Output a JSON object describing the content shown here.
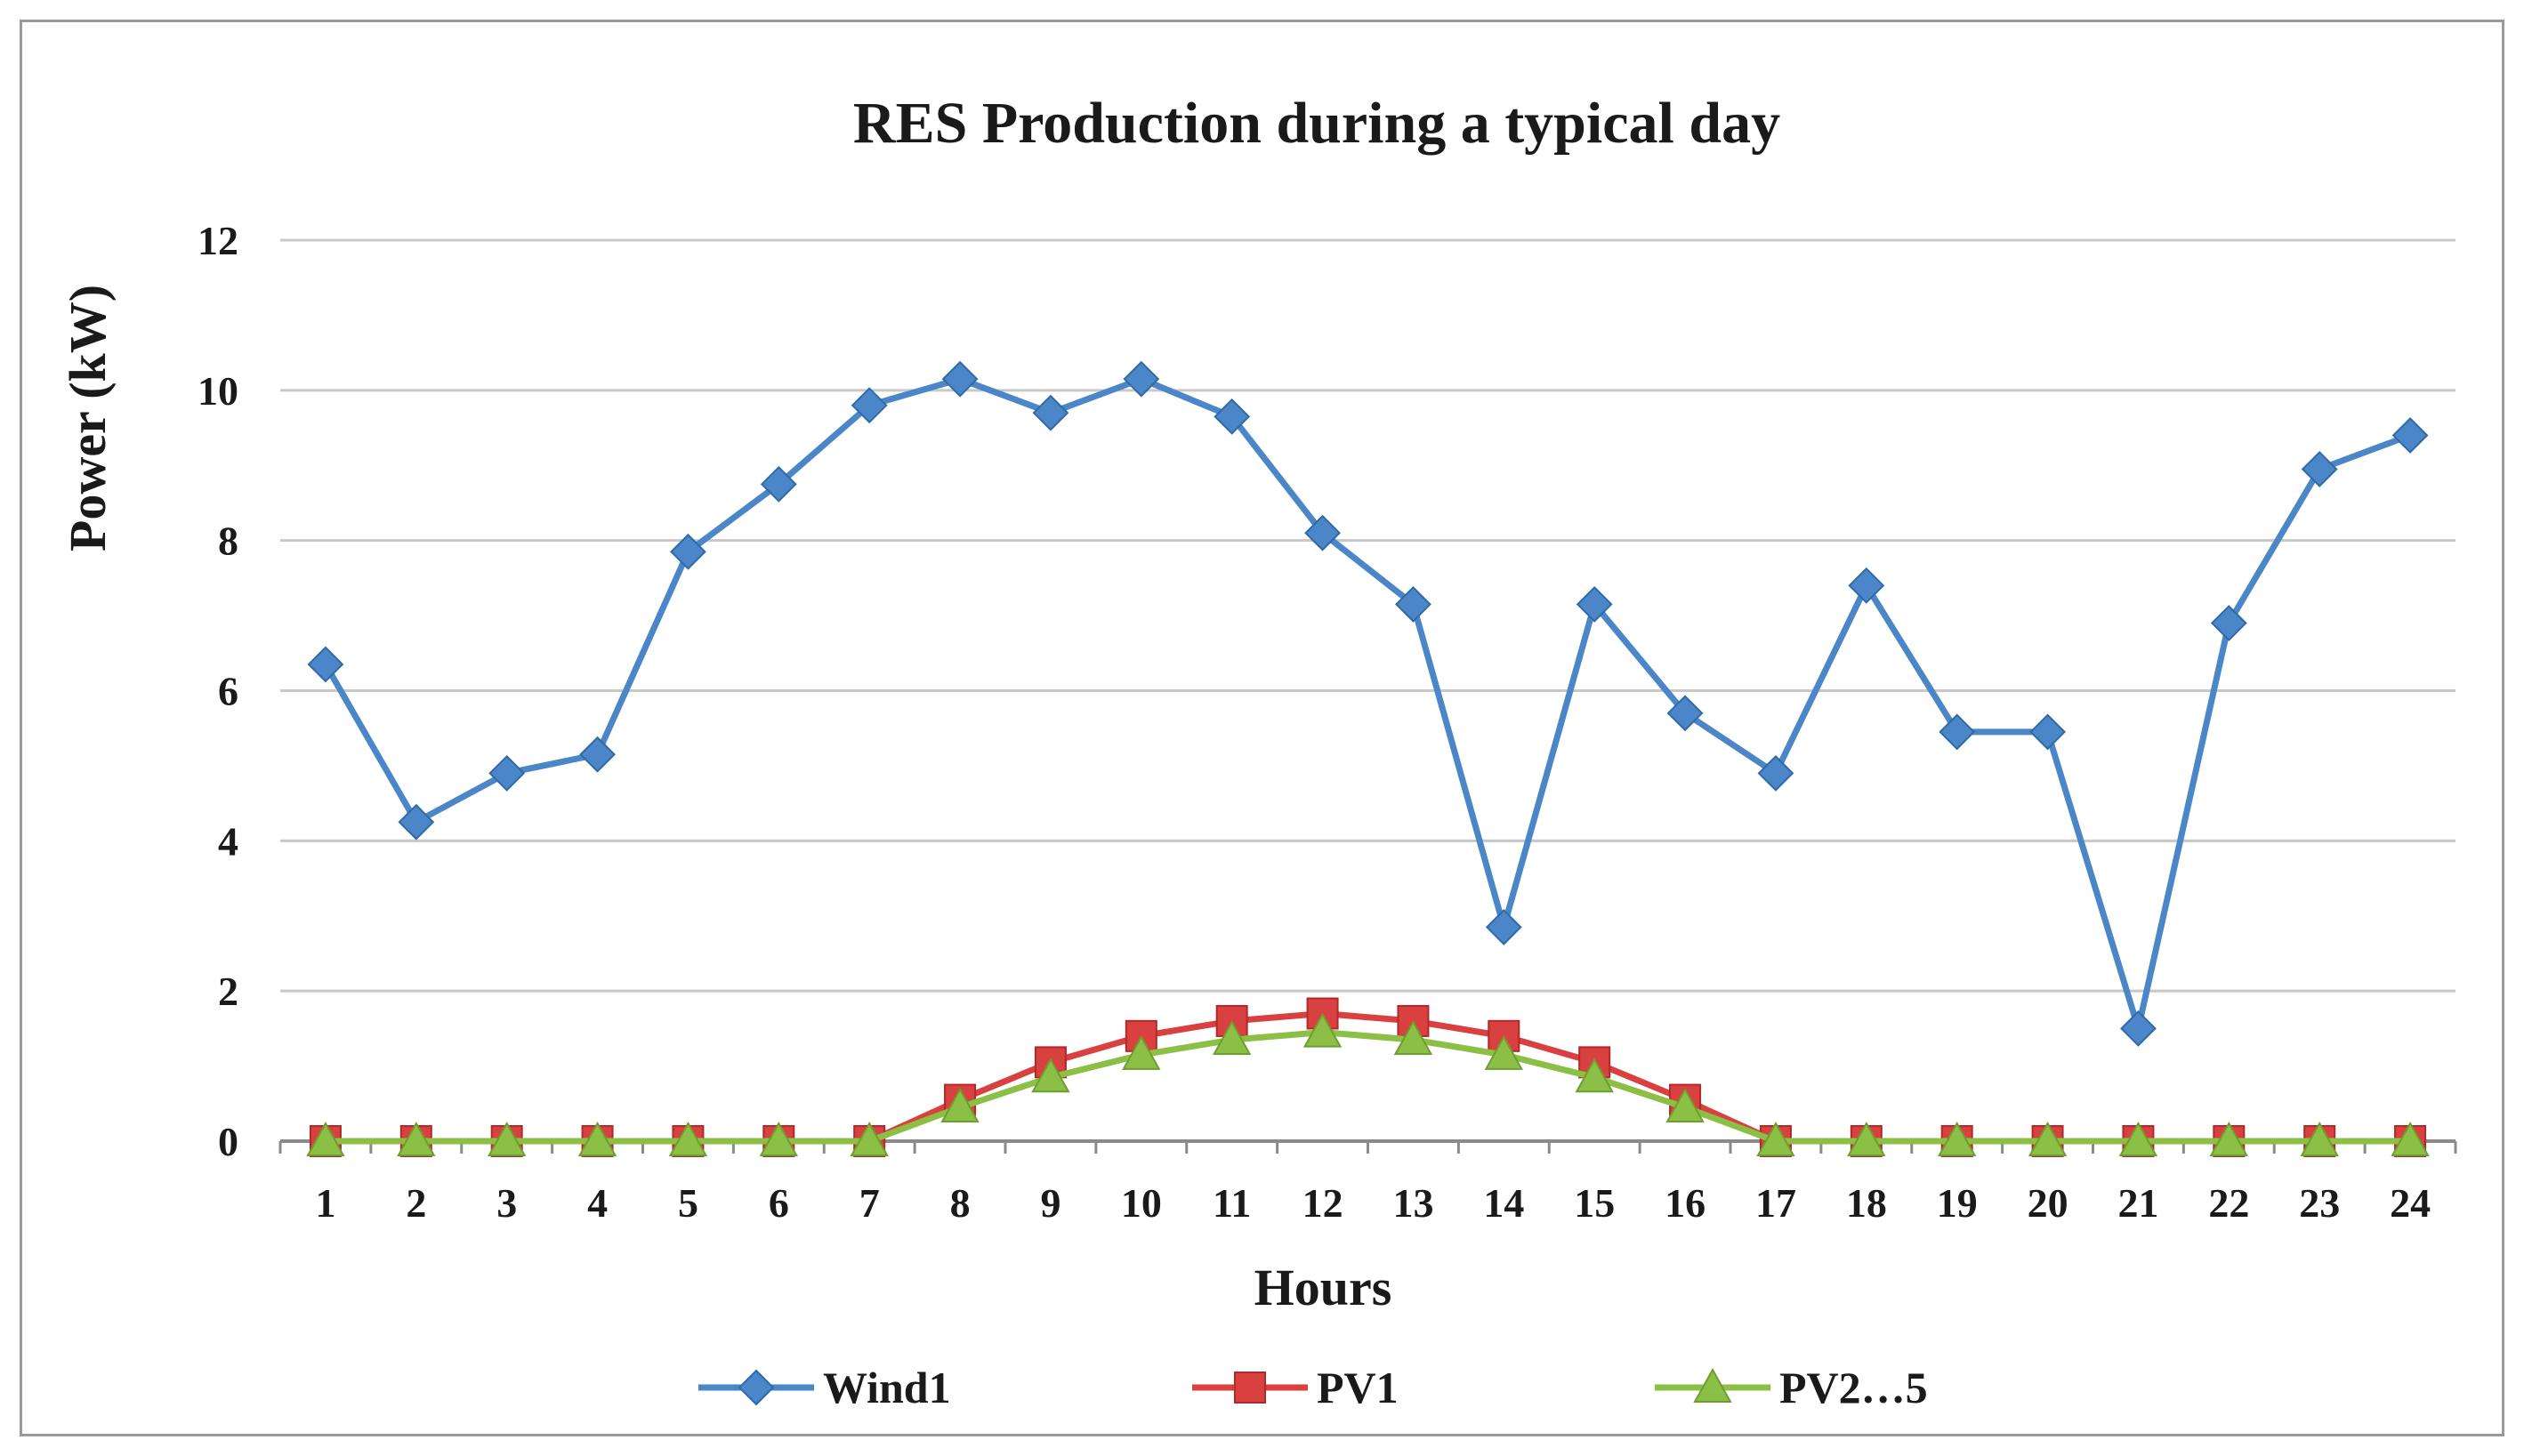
{
  "chart_data": {
    "type": "line",
    "title": "RES Production during a typical day",
    "xlabel": "Hours",
    "ylabel": "Power (kW)",
    "ylim": [
      0,
      12
    ],
    "yticks": [
      0,
      2,
      4,
      6,
      8,
      10,
      12
    ],
    "grid": true,
    "legend_position": "bottom",
    "categories": [
      "1",
      "2",
      "3",
      "4",
      "5",
      "6",
      "7",
      "8",
      "9",
      "10",
      "11",
      "12",
      "13",
      "14",
      "15",
      "16",
      "17",
      "18",
      "19",
      "20",
      "21",
      "22",
      "23",
      "24"
    ],
    "series": [
      {
        "name": "Wind1",
        "color": "#4a86c8",
        "marker": "diamond",
        "values": [
          6.35,
          4.25,
          4.9,
          5.15,
          7.85,
          8.75,
          9.8,
          10.15,
          9.7,
          10.15,
          9.65,
          8.1,
          7.15,
          2.85,
          7.15,
          5.7,
          4.9,
          7.4,
          5.45,
          5.45,
          1.5,
          6.9,
          8.95,
          9.4
        ]
      },
      {
        "name": "PV1",
        "color": "#d94040",
        "marker": "square",
        "values": [
          0,
          0,
          0,
          0,
          0,
          0,
          0,
          0.55,
          1.05,
          1.4,
          1.6,
          1.7,
          1.6,
          1.4,
          1.05,
          0.55,
          0,
          0,
          0,
          0,
          0,
          0,
          0,
          0
        ]
      },
      {
        "name": "PV2…5",
        "color": "#8cbf45",
        "marker": "triangle",
        "values": [
          0,
          0,
          0,
          0,
          0,
          0,
          0,
          0.45,
          0.85,
          1.15,
          1.35,
          1.45,
          1.35,
          1.15,
          0.85,
          0.45,
          0,
          0,
          0,
          0,
          0,
          0,
          0,
          0
        ]
      }
    ]
  }
}
